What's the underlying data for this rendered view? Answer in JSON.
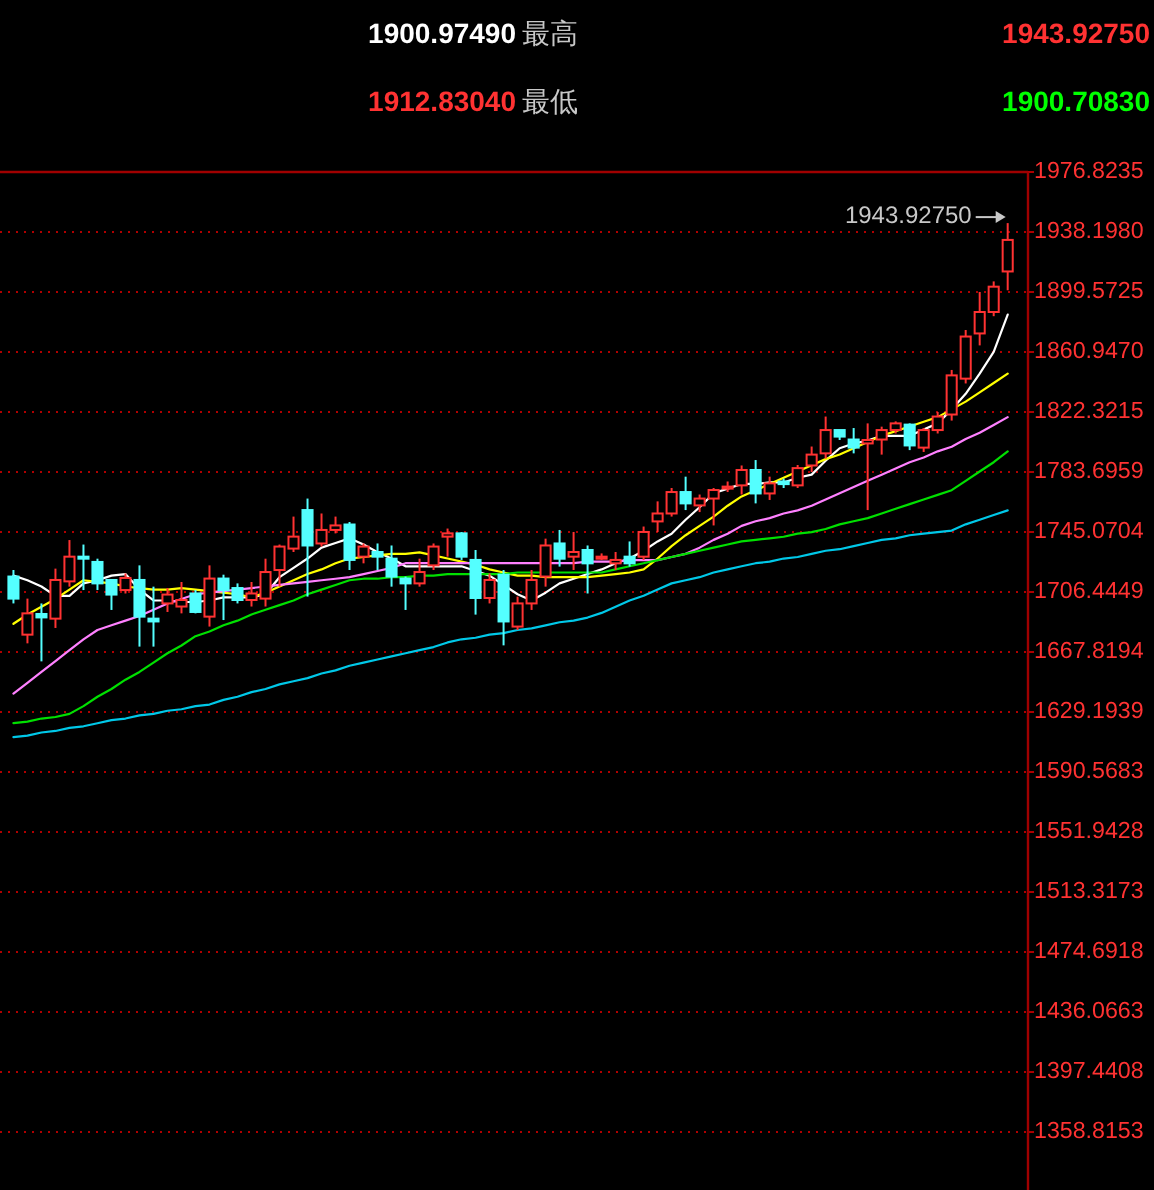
{
  "chart_data": {
    "type": "candlestick",
    "categories": [
      null,
      null,
      null,
      null,
      null,
      null,
      null,
      null,
      null,
      null,
      null,
      null,
      null,
      null,
      null,
      null,
      null,
      null,
      null,
      null,
      null,
      null,
      null,
      null,
      null,
      null,
      null,
      null,
      null,
      null,
      null,
      null,
      null,
      null,
      null,
      null,
      null,
      null,
      null,
      null,
      null,
      null,
      null,
      null,
      null,
      null,
      null,
      null,
      null,
      null,
      null,
      null,
      null,
      null,
      null,
      null,
      null,
      null,
      null,
      null,
      null,
      null,
      null,
      null,
      null,
      null,
      null,
      null,
      null,
      null,
      null,
      null
    ],
    "ohlc": [
      [
        1716.4,
        1720.6,
        1699.1,
        1702.2
      ],
      [
        1679.0,
        1702.2,
        1673.4,
        1692.7
      ],
      [
        1692.3,
        1699.1,
        1661.8,
        1690.1
      ],
      [
        1689.3,
        1721.5,
        1683.3,
        1714.2
      ],
      [
        1713.3,
        1739.9,
        1709.9,
        1729.2
      ],
      [
        1729.2,
        1737.0,
        1707.7,
        1727.9
      ],
      [
        1725.8,
        1727.9,
        1707.7,
        1712.0
      ],
      [
        1714.2,
        1714.2,
        1694.9,
        1704.8
      ],
      [
        1707.7,
        1718.4,
        1705.5,
        1715.5
      ],
      [
        1714.2,
        1723.6,
        1671.3,
        1690.6
      ],
      [
        1689.3,
        1709.9,
        1671.3,
        1687.5
      ],
      [
        1699.1,
        1709.0,
        1693.6,
        1704.8
      ],
      [
        1697.1,
        1712.9,
        1692.7,
        1701.3
      ],
      [
        1705.5,
        1707.7,
        1692.7,
        1693.6
      ],
      [
        1690.6,
        1723.6,
        1684.2,
        1715.1
      ],
      [
        1715.1,
        1717.6,
        1688.4,
        1707.7
      ],
      [
        1709.0,
        1712.0,
        1699.1,
        1701.3
      ],
      [
        1701.3,
        1712.9,
        1697.1,
        1705.5
      ],
      [
        1702.2,
        1727.9,
        1697.1,
        1719.3
      ],
      [
        1720.6,
        1737.0,
        1709.9,
        1735.7
      ],
      [
        1734.4,
        1755.0,
        1732.2,
        1742.1
      ],
      [
        1759.2,
        1766.6,
        1703.5,
        1736.4
      ],
      [
        1737.7,
        1757.0,
        1735.7,
        1746.4
      ],
      [
        1746.4,
        1755.0,
        1744.2,
        1749.3
      ],
      [
        1749.9,
        1751.5,
        1720.6,
        1727.1
      ],
      [
        1729.2,
        1737.7,
        1724.9,
        1735.7
      ],
      [
        1732.2,
        1737.7,
        1720.6,
        1729.2
      ],
      [
        1727.9,
        1736.4,
        1709.9,
        1716.4
      ],
      [
        1715.1,
        1716.4,
        1694.9,
        1712.0
      ],
      [
        1712.0,
        1727.9,
        1709.9,
        1719.3
      ],
      [
        1723.6,
        1737.7,
        1720.6,
        1735.7
      ],
      [
        1742.1,
        1747.3,
        1729.2,
        1744.2
      ],
      [
        1744.2,
        1745.0,
        1727.1,
        1729.2
      ],
      [
        1727.1,
        1733.5,
        1691.9,
        1702.6
      ],
      [
        1702.6,
        1718.4,
        1699.1,
        1714.2
      ],
      [
        1717.6,
        1720.6,
        1672.1,
        1687.5
      ],
      [
        1684.2,
        1703.5,
        1682.0,
        1699.1
      ],
      [
        1699.1,
        1720.6,
        1694.9,
        1714.2
      ],
      [
        1716.4,
        1740.8,
        1709.9,
        1736.4
      ],
      [
        1737.7,
        1746.4,
        1722.8,
        1727.9
      ],
      [
        1729.2,
        1745.1,
        1720.6,
        1732.2
      ],
      [
        1733.5,
        1736.4,
        1705.5,
        1724.9
      ],
      [
        1727.9,
        1731.3,
        1727.1,
        1729.2
      ],
      [
        1724.9,
        1732.2,
        1720.6,
        1727.1
      ],
      [
        1729.2,
        1739.0,
        1722.8,
        1724.9
      ],
      [
        1729.2,
        1748.6,
        1727.1,
        1745.1
      ],
      [
        1751.9,
        1764.8,
        1745.1,
        1757.0
      ],
      [
        1757.0,
        1773.4,
        1755.0,
        1770.8
      ],
      [
        1770.8,
        1780.7,
        1759.2,
        1763.5
      ],
      [
        1762.2,
        1769.2,
        1757.9,
        1766.6
      ],
      [
        1766.6,
        1773.4,
        1749.3,
        1772.1
      ],
      [
        1773.0,
        1777.6,
        1770.8,
        1774.3
      ],
      [
        1775.1,
        1787.9,
        1769.2,
        1785.0
      ],
      [
        1785.0,
        1791.4,
        1763.5,
        1769.9
      ],
      [
        1769.9,
        1780.7,
        1765.7,
        1776.4
      ],
      [
        1777.6,
        1779.4,
        1773.4,
        1775.9
      ],
      [
        1775.1,
        1788.2,
        1773.4,
        1786.2
      ],
      [
        1787.9,
        1800.1,
        1783.7,
        1794.9
      ],
      [
        1795.7,
        1819.4,
        1792.3,
        1810.7
      ],
      [
        1810.7,
        1810.7,
        1804.3,
        1806.5
      ],
      [
        1804.6,
        1812.0,
        1795.7,
        1799.4
      ],
      [
        1802.1,
        1815.0,
        1759.2,
        1804.3
      ],
      [
        1804.6,
        1812.9,
        1794.9,
        1810.7
      ],
      [
        1810.7,
        1816.3,
        1808.5,
        1815.0
      ],
      [
        1814.2,
        1815.0,
        1797.8,
        1800.8
      ],
      [
        1799.4,
        1812.0,
        1796.6,
        1810.7
      ],
      [
        1810.7,
        1822.3,
        1808.5,
        1819.4
      ],
      [
        1820.7,
        1849.4,
        1816.8,
        1845.9
      ],
      [
        1843.8,
        1875.1,
        1840.7,
        1870.9
      ],
      [
        1872.9,
        1899.6,
        1865.2,
        1886.7
      ],
      [
        1886.7,
        1906.4,
        1884.0,
        1903.0
      ],
      [
        1912.8,
        1943.9275,
        1900.7,
        1933.1
      ]
    ],
    "series": [
      {
        "type": "line",
        "color": "#ffffff",
        "values": [
          1717,
          1714,
          1710,
          1704,
          1704,
          1712,
          1714,
          1717,
          1718,
          1708,
          1701,
          1701,
          1700,
          1700,
          1701,
          1703,
          1703,
          1703,
          1705,
          1716,
          1722,
          1728,
          1735,
          1738,
          1741,
          1737,
          1732,
          1728,
          1723,
          1723,
          1723,
          1723,
          1723,
          1720,
          1717,
          1711,
          1705,
          1701,
          1706,
          1712,
          1715,
          1718,
          1721,
          1725,
          1728,
          1733,
          1739,
          1744,
          1753,
          1761,
          1770,
          1773,
          1776,
          1776,
          1777,
          1777,
          1780,
          1782,
          1791,
          1799,
          1802,
          1804,
          1807,
          1807,
          1807,
          1811,
          1815,
          1824,
          1834,
          1847,
          1861,
          1885
        ]
      },
      {
        "type": "line",
        "color": "#ffff00",
        "values": [
          1686,
          1692,
          1697,
          1702,
          1708,
          1714,
          1713,
          1712,
          1710,
          1709,
          1708,
          1708,
          1709,
          1708,
          1707,
          1706,
          1705,
          1703,
          1706,
          1710,
          1714,
          1718,
          1721,
          1725,
          1728,
          1729,
          1730,
          1731,
          1731,
          1732,
          1730,
          1728,
          1726,
          1724,
          1721,
          1719,
          1717,
          1717,
          1716,
          1716,
          1716,
          1716,
          1717,
          1718,
          1719,
          1721,
          1728,
          1736,
          1743,
          1749,
          1755,
          1762,
          1768,
          1772,
          1776,
          1780,
          1784,
          1788,
          1792,
          1795,
          1799,
          1803,
          1807,
          1810,
          1813,
          1816,
          1819,
          1824,
          1829,
          1835,
          1841,
          1847
        ]
      },
      {
        "type": "line",
        "color": "#ff80ff",
        "values": [
          1641,
          1648,
          1655,
          1662,
          1669,
          1676,
          1682,
          1685,
          1688,
          1691,
          1695,
          1699,
          1702,
          1705,
          1706,
          1707,
          1708,
          1709,
          1710,
          1711,
          1712,
          1713,
          1714,
          1715,
          1716,
          1718,
          1720,
          1722,
          1725,
          1725,
          1725,
          1725,
          1725,
          1725,
          1725,
          1725,
          1725,
          1725,
          1725,
          1725,
          1725,
          1726,
          1726,
          1726,
          1727,
          1727,
          1727,
          1729,
          1731,
          1735,
          1740,
          1744,
          1749,
          1752,
          1754,
          1757,
          1759,
          1762,
          1766,
          1770,
          1774,
          1778,
          1782,
          1786,
          1790,
          1793,
          1797,
          1800,
          1805,
          1809,
          1814,
          1819
        ]
      },
      {
        "type": "line",
        "color": "#00e000",
        "values": [
          1622,
          1623,
          1625,
          1626,
          1628,
          1633,
          1639,
          1644,
          1650,
          1655,
          1661,
          1667,
          1672,
          1678,
          1681,
          1685,
          1688,
          1692,
          1695,
          1698,
          1701,
          1705,
          1708,
          1711,
          1714,
          1715,
          1715,
          1716,
          1716,
          1717,
          1717,
          1718,
          1718,
          1718,
          1718,
          1718,
          1719,
          1719,
          1719,
          1719,
          1719,
          1719,
          1719,
          1721,
          1723,
          1725,
          1727,
          1729,
          1731,
          1733,
          1735,
          1737,
          1739,
          1740,
          1741,
          1742,
          1744,
          1745,
          1747,
          1750,
          1752,
          1754,
          1757,
          1760,
          1763,
          1766,
          1769,
          1772,
          1778,
          1784,
          1790,
          1797
        ]
      },
      {
        "type": "line",
        "color": "#00c8e8",
        "values": [
          1613,
          1614,
          1616,
          1617,
          1619,
          1620,
          1622,
          1624,
          1625,
          1627,
          1628,
          1630,
          1631,
          1633,
          1634,
          1637,
          1639,
          1642,
          1644,
          1647,
          1649,
          1651,
          1654,
          1656,
          1659,
          1661,
          1663,
          1665,
          1667,
          1669,
          1671,
          1674,
          1676,
          1677,
          1679,
          1680,
          1682,
          1683,
          1685,
          1687,
          1688,
          1690,
          1693,
          1697,
          1701,
          1704,
          1708,
          1712,
          1714,
          1716,
          1719,
          1721,
          1723,
          1725,
          1726,
          1728,
          1729,
          1731,
          1733,
          1734,
          1736,
          1738,
          1740,
          1741,
          1743,
          1744,
          1745,
          1746,
          1750,
          1753,
          1756,
          1759
        ]
      }
    ],
    "ylim": [
      1321.5,
      1976.8235
    ],
    "yticks": [
      {
        "value": 1976.8235,
        "label": "1976.8235"
      },
      {
        "value": 1938.198,
        "label": "1938.1980"
      },
      {
        "value": 1899.5725,
        "label": "1899.5725"
      },
      {
        "value": 1860.947,
        "label": "1860.9470"
      },
      {
        "value": 1822.3215,
        "label": "1822.3215"
      },
      {
        "value": 1783.6959,
        "label": "1783.6959"
      },
      {
        "value": 1745.0704,
        "label": "1745.0704"
      },
      {
        "value": 1706.4449,
        "label": "1706.4449"
      },
      {
        "value": 1667.8194,
        "label": "1667.8194"
      },
      {
        "value": 1629.1939,
        "label": "1629.1939"
      },
      {
        "value": 1590.5683,
        "label": "1590.5683"
      },
      {
        "value": 1551.9428,
        "label": "1551.9428"
      },
      {
        "value": 1513.3173,
        "label": "1513.3173"
      },
      {
        "value": 1474.6918,
        "label": "1474.6918"
      },
      {
        "value": 1436.0663,
        "label": "1436.0663"
      },
      {
        "value": 1397.4408,
        "label": "1397.4408"
      },
      {
        "value": 1358.8153,
        "label": "1358.8153"
      }
    ],
    "grid": "y",
    "tick_labels": "y",
    "annotations": [
      "1900.97490",
      "最高",
      "1943.92750",
      "1912.83040",
      "最低",
      "1900.70830",
      "1943.92750"
    ]
  }
}
